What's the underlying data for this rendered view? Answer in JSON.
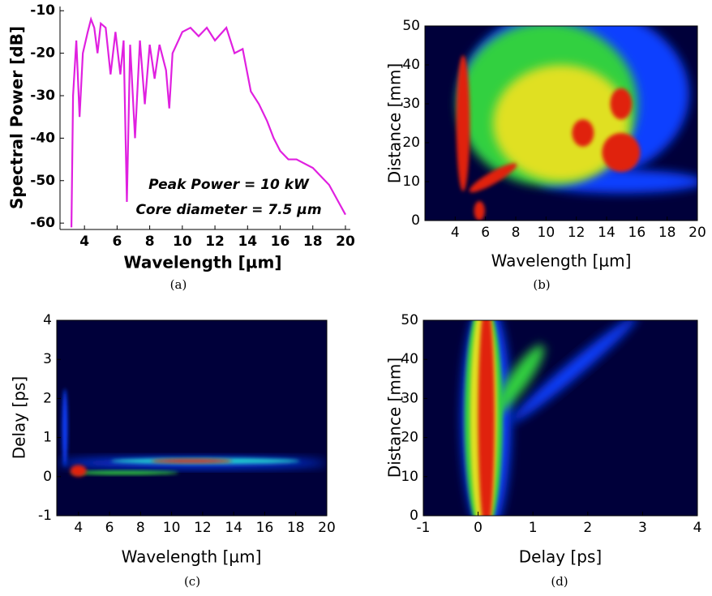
{
  "chart_data": [
    {
      "type": "line",
      "xlabel": "Wavelength [µm]",
      "ylabel": "Spectral Power [dB]",
      "x": [
        3.2,
        3.3,
        3.5,
        3.7,
        3.9,
        4.2,
        4.4,
        4.6,
        4.8,
        5.0,
        5.3,
        5.6,
        5.9,
        6.2,
        6.4,
        6.6,
        6.8,
        7.1,
        7.4,
        7.7,
        8.0,
        8.3,
        8.6,
        9.0,
        9.2,
        9.4,
        10.0,
        10.5,
        11.0,
        11.5,
        12.0,
        12.7,
        13.2,
        13.7,
        14.2,
        14.7,
        15.2,
        15.6,
        16.0,
        16.5,
        17.0,
        18.0,
        19.0,
        20.0
      ],
      "values": [
        -61,
        -30,
        -17,
        -35,
        -20,
        -15,
        -12,
        -14,
        -20,
        -13,
        -14,
        -25,
        -15,
        -25,
        -17,
        -55,
        -18,
        -40,
        -17,
        -32,
        -18,
        -26,
        -18,
        -24,
        -33,
        -20,
        -15,
        -14,
        -16,
        -14,
        -17,
        -14,
        -20,
        -19,
        -29,
        -32,
        -36,
        -40,
        -43,
        -45,
        -45,
        -47,
        -51,
        -58
      ],
      "color": "#e020e0",
      "xlim": [
        2.5,
        20.3
      ],
      "ylim": [
        -61.5,
        -9
      ],
      "xticks": [
        4,
        6,
        8,
        10,
        12,
        14,
        16,
        18,
        20
      ],
      "yticks": [
        -60,
        -50,
        -40,
        -30,
        -20,
        -10
      ],
      "annotations": [
        "Peak Power = 10 kW",
        "Core diameter = 7.5 µm"
      ],
      "caption": "(a)"
    },
    {
      "type": "heatmap",
      "xlabel": "Wavelength [µm]",
      "ylabel": "Distance [mm]",
      "xlim": [
        2,
        20
      ],
      "ylim": [
        0,
        50
      ],
      "xticks": [
        4,
        6,
        8,
        10,
        12,
        14,
        16,
        18,
        20
      ],
      "yticks": [
        0,
        10,
        20,
        30,
        40,
        50
      ],
      "caption": "(b)"
    },
    {
      "type": "heatmap",
      "xlabel": "Wavelength [µm]",
      "ylabel": "Delay [ps]",
      "xlim": [
        2.6,
        20
      ],
      "ylim": [
        -1,
        4
      ],
      "xticks": [
        4,
        6,
        8,
        10,
        12,
        14,
        16,
        18,
        20
      ],
      "yticks": [
        -1,
        0,
        1,
        2,
        3,
        4
      ],
      "caption": "(c)"
    },
    {
      "type": "heatmap",
      "xlabel": "Delay [ps]",
      "ylabel": "Distance [mm]",
      "xlim": [
        -1,
        4
      ],
      "ylim": [
        0,
        50
      ],
      "xticks": [
        -1,
        0,
        1,
        2,
        3,
        4
      ],
      "yticks": [
        0,
        10,
        20,
        30,
        40,
        50
      ],
      "caption": "(d)"
    }
  ]
}
